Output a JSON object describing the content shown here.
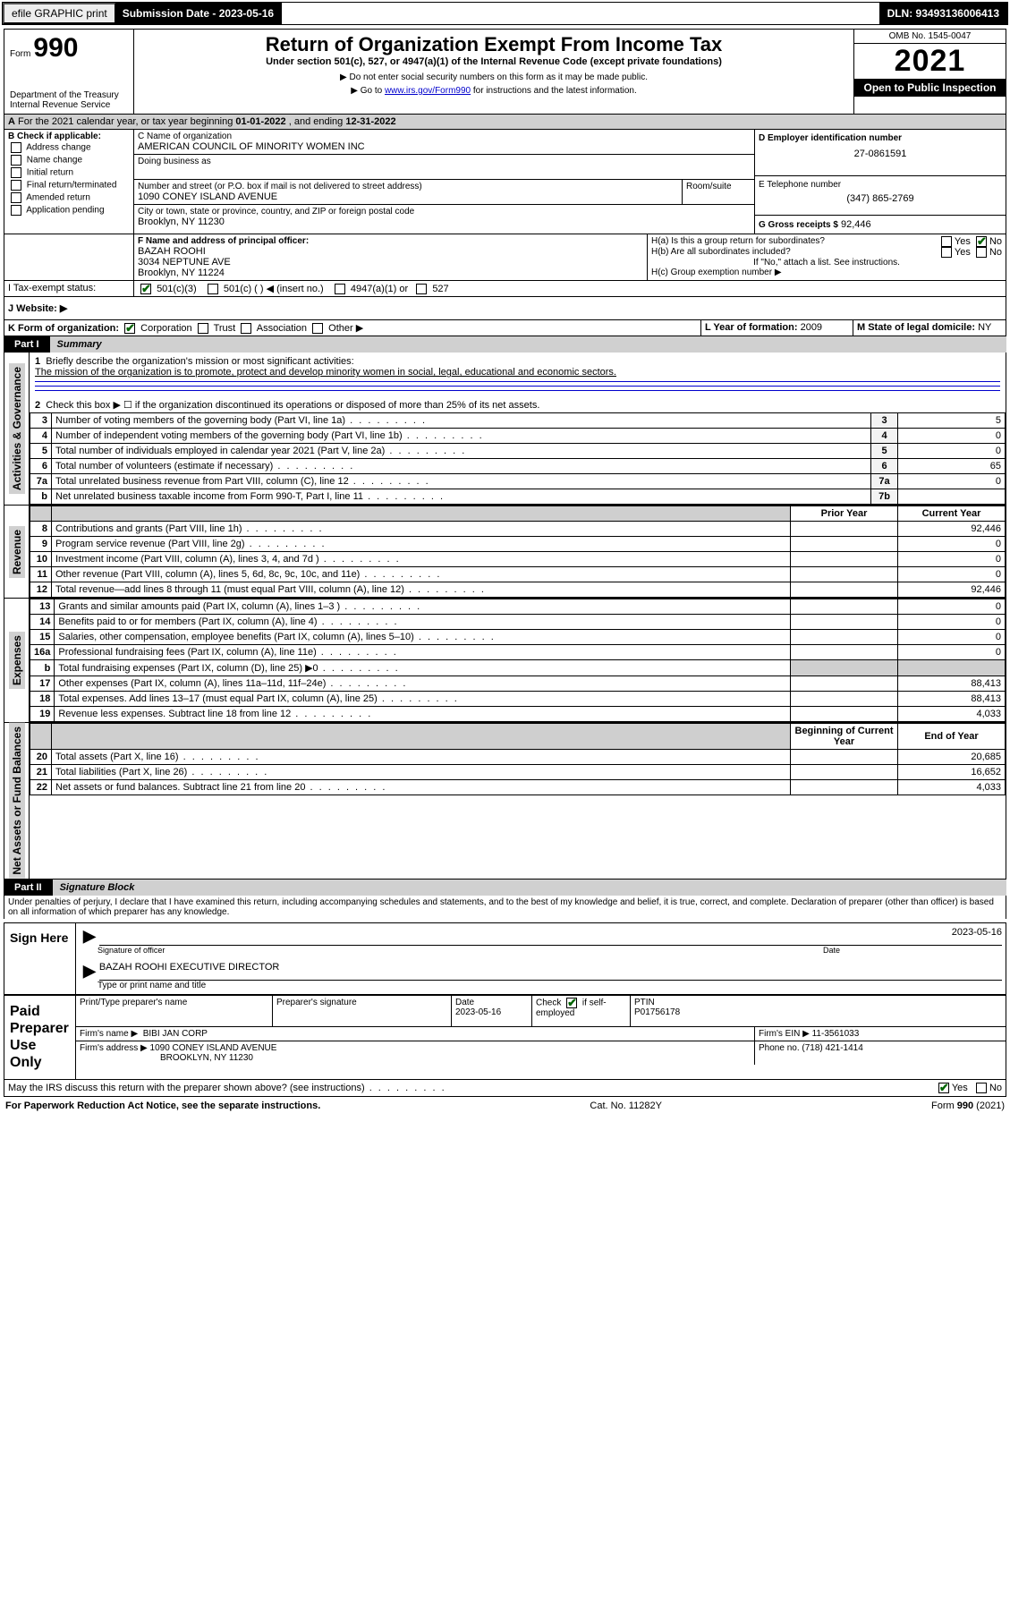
{
  "topbar": {
    "efile": "efile GRAPHIC print",
    "sub_label": "Submission Date - 2023-05-16",
    "dln": "DLN: 93493136006413"
  },
  "header": {
    "form_word": "Form",
    "form_num": "990",
    "dept": "Department of the Treasury",
    "irs": "Internal Revenue Service",
    "title": "Return of Organization Exempt From Income Tax",
    "subtitle": "Under section 501(c), 527, or 4947(a)(1) of the Internal Revenue Code (except private foundations)",
    "note1": "▶ Do not enter social security numbers on this form as it may be made public.",
    "note2_pre": "▶ Go to ",
    "note2_link": "www.irs.gov/Form990",
    "note2_post": " for instructions and the latest information.",
    "omb": "OMB No. 1545-0047",
    "year": "2021",
    "opento": "Open to Public Inspection"
  },
  "period": {
    "text_pre": "For the 2021 calendar year, or tax year beginning ",
    "begin": "01-01-2022",
    "mid": " , and ending ",
    "end": "12-31-2022"
  },
  "boxB": {
    "title": "B Check if applicable:",
    "items": [
      "Address change",
      "Name change",
      "Initial return",
      "Final return/terminated",
      "Amended return",
      "Application pending"
    ]
  },
  "boxC": {
    "label": "C Name of organization",
    "name": "AMERICAN COUNCIL OF MINORITY WOMEN INC",
    "dba_label": "Doing business as",
    "street_label": "Number and street (or P.O. box if mail is not delivered to street address)",
    "room_label": "Room/suite",
    "street": "1090 CONEY ISLAND AVENUE",
    "city_label": "City or town, state or province, country, and ZIP or foreign postal code",
    "city": "Brooklyn, NY  11230"
  },
  "boxD": {
    "label": "D Employer identification number",
    "value": "27-0861591"
  },
  "boxE": {
    "label": "E Telephone number",
    "value": "(347) 865-2769"
  },
  "boxG": {
    "label": "G Gross receipts $",
    "value": "92,446"
  },
  "boxF": {
    "label": "F Name and address of principal officer:",
    "name": "BAZAH ROOHI",
    "addr1": "3034 NEPTUNE AVE",
    "addr2": "Brooklyn, NY  11224"
  },
  "boxH": {
    "ha": "H(a)  Is this a group return for subordinates?",
    "hb": "H(b)  Are all subordinates included?",
    "hnote": "If \"No,\" attach a list. See instructions.",
    "hc": "H(c)  Group exemption number ▶",
    "yes": "Yes",
    "no": "No"
  },
  "boxI": {
    "label": "I   Tax-exempt status:",
    "o1": "501(c)(3)",
    "o2": "501(c) (  ) ◀ (insert no.)",
    "o3": "4947(a)(1) or",
    "o4": "527"
  },
  "boxJ": {
    "label": "J   Website: ▶"
  },
  "boxK": {
    "label": "K Form of organization:",
    "o1": "Corporation",
    "o2": "Trust",
    "o3": "Association",
    "o4": "Other ▶"
  },
  "boxL": {
    "label": "L Year of formation:",
    "value": "2009"
  },
  "boxM": {
    "label": "M State of legal domicile:",
    "value": "NY"
  },
  "part1": {
    "label": "Part I",
    "title": "Summary",
    "side_ag": "Activities & Governance",
    "side_rev": "Revenue",
    "side_exp": "Expenses",
    "side_na": "Net Assets or Fund Balances",
    "l1": "Briefly describe the organization's mission or most significant activities:",
    "mission": "The mission of the organization is to promote, protect and develop minority women in social, legal, educational and economic sectors.",
    "l2": "Check this box ▶ ☐  if the organization discontinued its operations or disposed of more than 25% of its net assets.",
    "rows_ag": [
      {
        "n": "3",
        "t": "Number of voting members of the governing body (Part VI, line 1a)",
        "box": "3",
        "v": "5"
      },
      {
        "n": "4",
        "t": "Number of independent voting members of the governing body (Part VI, line 1b)",
        "box": "4",
        "v": "0"
      },
      {
        "n": "5",
        "t": "Total number of individuals employed in calendar year 2021 (Part V, line 2a)",
        "box": "5",
        "v": "0"
      },
      {
        "n": "6",
        "t": "Total number of volunteers (estimate if necessary)",
        "box": "6",
        "v": "65"
      },
      {
        "n": "7a",
        "t": "Total unrelated business revenue from Part VIII, column (C), line 12",
        "box": "7a",
        "v": "0"
      },
      {
        "n": "b",
        "t": "Net unrelated business taxable income from Form 990-T, Part I, line 11",
        "box": "7b",
        "v": ""
      }
    ],
    "col_prev": "Prior Year",
    "col_curr": "Current Year",
    "rows_rev": [
      {
        "n": "8",
        "t": "Contributions and grants (Part VIII, line 1h)",
        "p": "",
        "c": "92,446"
      },
      {
        "n": "9",
        "t": "Program service revenue (Part VIII, line 2g)",
        "p": "",
        "c": "0"
      },
      {
        "n": "10",
        "t": "Investment income (Part VIII, column (A), lines 3, 4, and 7d )",
        "p": "",
        "c": "0"
      },
      {
        "n": "11",
        "t": "Other revenue (Part VIII, column (A), lines 5, 6d, 8c, 9c, 10c, and 11e)",
        "p": "",
        "c": "0"
      },
      {
        "n": "12",
        "t": "Total revenue—add lines 8 through 11 (must equal Part VIII, column (A), line 12)",
        "p": "",
        "c": "92,446"
      }
    ],
    "rows_exp": [
      {
        "n": "13",
        "t": "Grants and similar amounts paid (Part IX, column (A), lines 1–3 )",
        "p": "",
        "c": "0"
      },
      {
        "n": "14",
        "t": "Benefits paid to or for members (Part IX, column (A), line 4)",
        "p": "",
        "c": "0"
      },
      {
        "n": "15",
        "t": "Salaries, other compensation, employee benefits (Part IX, column (A), lines 5–10)",
        "p": "",
        "c": "0"
      },
      {
        "n": "16a",
        "t": "Professional fundraising fees (Part IX, column (A), line 11e)",
        "p": "",
        "c": "0"
      },
      {
        "n": "b",
        "t": "Total fundraising expenses (Part IX, column (D), line 25) ▶0",
        "p": "gray",
        "c": "gray"
      },
      {
        "n": "17",
        "t": "Other expenses (Part IX, column (A), lines 11a–11d, 11f–24e)",
        "p": "",
        "c": "88,413"
      },
      {
        "n": "18",
        "t": "Total expenses. Add lines 13–17 (must equal Part IX, column (A), line 25)",
        "p": "",
        "c": "88,413"
      },
      {
        "n": "19",
        "t": "Revenue less expenses. Subtract line 18 from line 12",
        "p": "",
        "c": "4,033"
      }
    ],
    "col_beg": "Beginning of Current Year",
    "col_end": "End of Year",
    "rows_na": [
      {
        "n": "20",
        "t": "Total assets (Part X, line 16)",
        "p": "",
        "c": "20,685"
      },
      {
        "n": "21",
        "t": "Total liabilities (Part X, line 26)",
        "p": "",
        "c": "16,652"
      },
      {
        "n": "22",
        "t": "Net assets or fund balances. Subtract line 21 from line 20",
        "p": "",
        "c": "4,033"
      }
    ]
  },
  "part2": {
    "label": "Part II",
    "title": "Signature Block",
    "decl": "Under penalties of perjury, I declare that I have examined this return, including accompanying schedules and statements, and to the best of my knowledge and belief, it is true, correct, and complete. Declaration of preparer (other than officer) is based on all information of which preparer has any knowledge."
  },
  "sign": {
    "here": "Sign Here",
    "sig_label": "Signature of officer",
    "date_label": "Date",
    "date": "2023-05-16",
    "name_title": "BAZAH ROOHI  EXECUTIVE DIRECTOR",
    "name_label": "Type or print name and title"
  },
  "paid": {
    "title": "Paid Preparer Use Only",
    "c1": "Print/Type preparer's name",
    "c2": "Preparer's signature",
    "c3": "Date",
    "c3v": "2023-05-16",
    "c4a": "Check",
    "c4b": "if self-employed",
    "c5": "PTIN",
    "c5v": "P01756178",
    "firm_name_l": "Firm's name   ▶",
    "firm_name": "BIBI JAN CORP",
    "firm_ein_l": "Firm's EIN ▶",
    "firm_ein": "11-3561033",
    "firm_addr_l": "Firm's address ▶",
    "firm_addr1": "1090 CONEY ISLAND AVENUE",
    "firm_addr2": "BROOKLYN, NY  11230",
    "phone_l": "Phone no.",
    "phone": "(718) 421-1414"
  },
  "discuss": {
    "text": "May the IRS discuss this return with the preparer shown above? (see instructions)",
    "yes": "Yes",
    "no": "No"
  },
  "footer": {
    "left": "For Paperwork Reduction Act Notice, see the separate instructions.",
    "mid": "Cat. No. 11282Y",
    "right": "Form 990 (2021)"
  }
}
